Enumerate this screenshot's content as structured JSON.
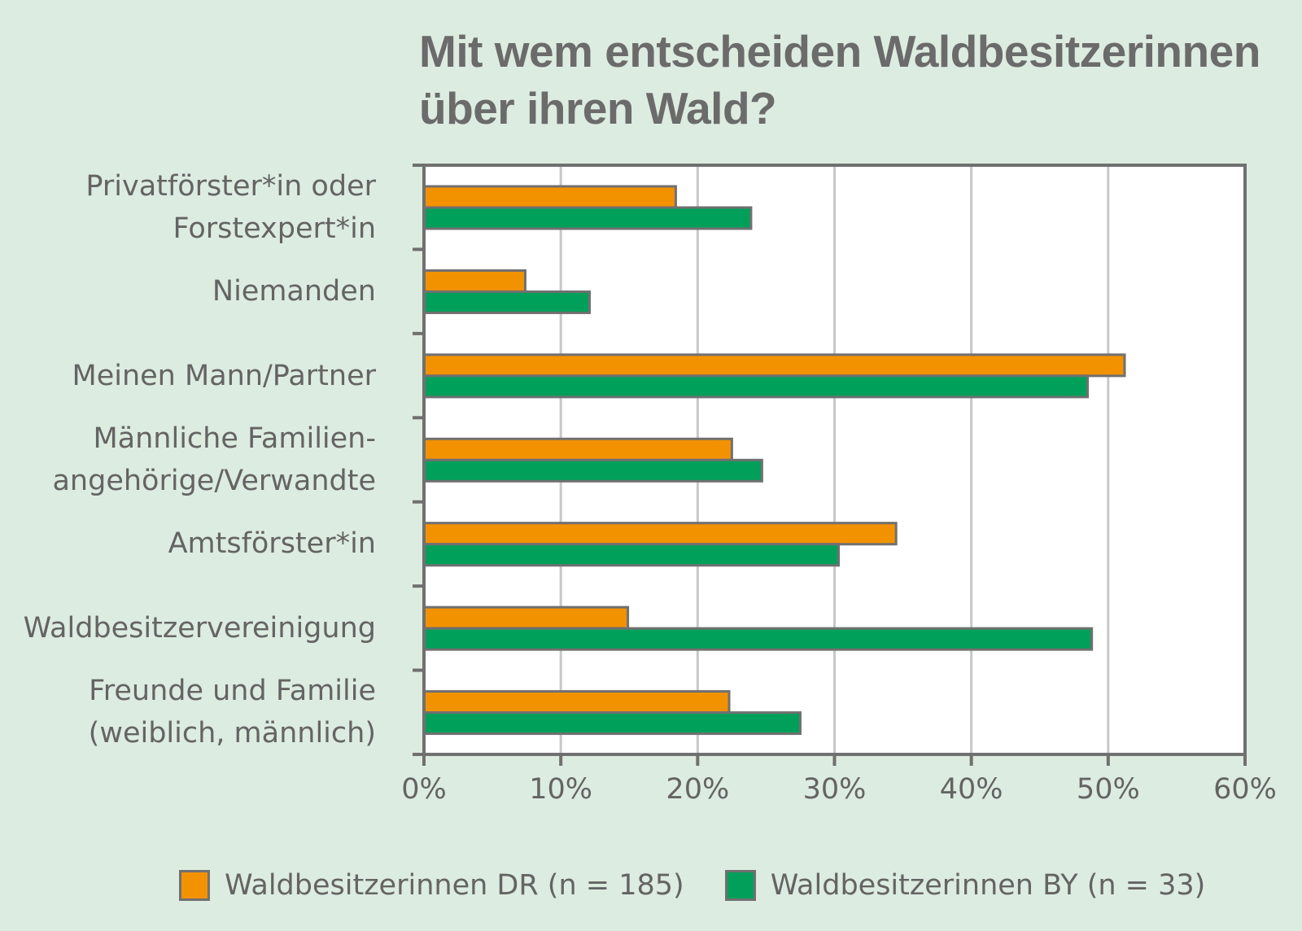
{
  "chart_data": {
    "type": "bar",
    "orientation": "horizontal",
    "title": [
      "Mit wem entscheiden Waldbesitzerinnen",
      "über ihren Wald?"
    ],
    "categories": [
      "Privatförster*in oder\nForstexpert*in",
      "Niemanden",
      "Meinen Mann/Partner",
      "Männliche Familien-\nangehörige/Verwandte",
      "Amtsförster*in",
      "Waldbesitzervereinigung",
      "Freunde und Familie\n(weiblich, männlich)"
    ],
    "series": [
      {
        "name": "Waldbesitzerinnen DR (n = 185)",
        "color": "#f39200",
        "values": [
          18.4,
          7.4,
          51.2,
          22.5,
          34.5,
          14.9,
          22.3
        ]
      },
      {
        "name": "Waldbesitzerinnen BY (n = 33)",
        "color": "#00a05a",
        "values": [
          23.9,
          12.1,
          48.5,
          24.7,
          30.3,
          48.8,
          27.5
        ]
      }
    ],
    "xlim": [
      0,
      60
    ],
    "xticks": [
      0,
      10,
      20,
      30,
      40,
      50,
      60
    ],
    "xtick_labels": [
      "0%",
      "10%",
      "20%",
      "30%",
      "40%",
      "50%",
      "60%"
    ],
    "xlabel": "",
    "ylabel": "",
    "grid": "vertical",
    "legend": "bottom"
  },
  "colors": {
    "background": "#ddece0",
    "plot_background": "#ffffff",
    "axis": "#707070",
    "grid": "#c8c8c8",
    "text": "#646464"
  }
}
